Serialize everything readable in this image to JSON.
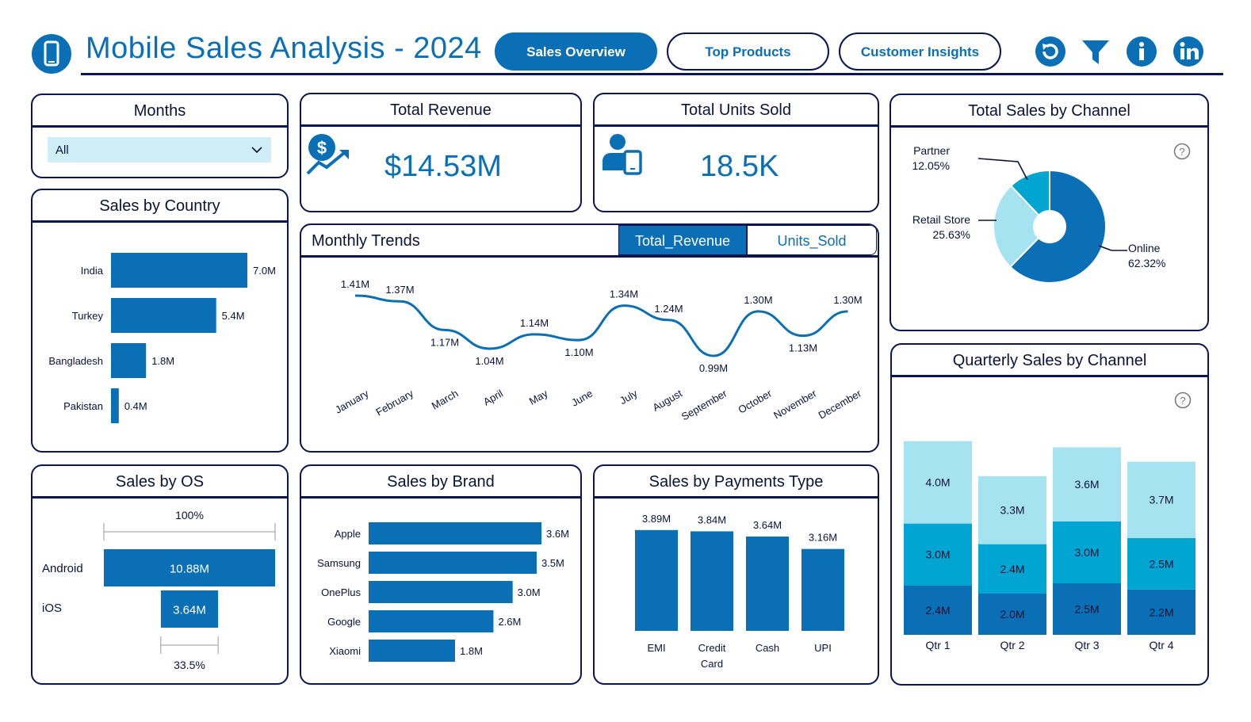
{
  "header": {
    "title": "Mobile Sales Analysis - 2024",
    "logo_icon": "mobile-phone-icon",
    "nav": [
      {
        "label": "Sales Overview",
        "active": true
      },
      {
        "label": "Top Products",
        "active": false
      },
      {
        "label": "Customer Insights",
        "active": false
      }
    ],
    "icons": [
      "reset-icon",
      "filter-icon",
      "info-icon",
      "linkedin-icon"
    ]
  },
  "colors": {
    "primary": "#0a6fb5",
    "navy": "#0a1552",
    "light": "#5bc8e0",
    "pale": "#a6e3f1",
    "mid": "#00a6d1"
  },
  "months_filter": {
    "title": "Months",
    "value": "All"
  },
  "total_revenue": {
    "title": "Total Revenue",
    "value": "$14.53M",
    "icon": "revenue-growth-icon"
  },
  "total_units": {
    "title": "Total Units Sold",
    "value": "18.5K",
    "icon": "user-phone-icon"
  },
  "sales_by_country": {
    "title": "Sales by Country",
    "chart_data": {
      "type": "bar",
      "categories": [
        "India",
        "Turkey",
        "Bangladesh",
        "Pakistan"
      ],
      "values": [
        7.0,
        5.4,
        1.8,
        0.4
      ],
      "labels": [
        "7.0M",
        "5.4M",
        "1.8M",
        "0.4M"
      ]
    }
  },
  "monthly_trends": {
    "title": "Monthly Trends",
    "toggle": [
      "Total_Revenue",
      "Units_Sold"
    ],
    "chart_data": {
      "type": "line",
      "categories": [
        "January",
        "February",
        "March",
        "April",
        "May",
        "June",
        "July",
        "August",
        "September",
        "October",
        "November",
        "December"
      ],
      "values": [
        1.41,
        1.37,
        1.17,
        1.04,
        1.14,
        1.1,
        1.34,
        1.24,
        0.99,
        1.3,
        1.13,
        1.3
      ],
      "labels": [
        "1.41M",
        "1.37M",
        "1.17M",
        "1.04M",
        "1.14M",
        "1.10M",
        "1.34M",
        "1.24M",
        "0.99M",
        "1.30M",
        "1.13M",
        "1.30M"
      ]
    }
  },
  "total_sales_by_channel": {
    "title": "Total Sales by Channel",
    "chart_data": {
      "type": "pie",
      "categories": [
        "Online",
        "Retail Store",
        "Partner"
      ],
      "values": [
        62.32,
        25.63,
        12.05
      ],
      "names": [
        "Online",
        "Retail Store",
        "Partner"
      ],
      "labels": [
        "62.32%",
        "25.63%",
        "12.05%"
      ]
    }
  },
  "quarterly_sales": {
    "title": "Quarterly Sales by Channel",
    "chart_data": {
      "type": "bar",
      "stacked": true,
      "categories": [
        "Qtr 1",
        "Qtr 2",
        "Qtr 3",
        "Qtr 4"
      ],
      "series": [
        {
          "values": [
            2.4,
            2.0,
            2.5,
            2.2
          ],
          "labels": [
            "2.4M",
            "2.0M",
            "2.5M",
            "2.2M"
          ]
        },
        {
          "values": [
            3.0,
            2.4,
            3.0,
            2.5
          ],
          "labels": [
            "3.0M",
            "2.4M",
            "3.0M",
            "2.5M"
          ]
        },
        {
          "values": [
            4.0,
            3.3,
            3.6,
            3.7
          ],
          "labels": [
            "4.0M",
            "3.3M",
            "3.6M",
            "3.7M"
          ]
        }
      ]
    }
  },
  "sales_by_os": {
    "title": "Sales by OS",
    "top_label": "100%",
    "bottom_label": "33.5%",
    "chart_data": {
      "type": "bar",
      "categories": [
        "Android",
        "iOS"
      ],
      "values": [
        10.88,
        3.64
      ],
      "labels": [
        "10.88M",
        "3.64M"
      ]
    }
  },
  "sales_by_brand": {
    "title": "Sales by Brand",
    "chart_data": {
      "type": "bar",
      "categories": [
        "Apple",
        "Samsung",
        "OnePlus",
        "Google",
        "Xiaomi"
      ],
      "values": [
        3.6,
        3.5,
        3.0,
        2.6,
        1.8
      ],
      "labels": [
        "3.6M",
        "3.5M",
        "3.0M",
        "2.6M",
        "1.8M"
      ]
    }
  },
  "sales_by_payment": {
    "title": "Sales by Payments Type",
    "chart_data": {
      "type": "bar",
      "categories": [
        "EMI",
        "Credit Card",
        "Cash",
        "UPI"
      ],
      "values": [
        3.89,
        3.84,
        3.64,
        3.16
      ],
      "labels": [
        "3.89M",
        "3.84M",
        "3.64M",
        "3.16M"
      ]
    }
  }
}
